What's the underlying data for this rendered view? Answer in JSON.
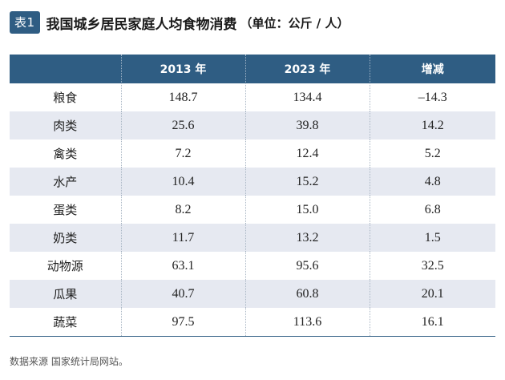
{
  "header": {
    "badge": "表1",
    "title": "我国城乡居民家庭人均食物消费",
    "unit": "（单位：公斤 / 人）"
  },
  "table": {
    "columns": [
      "",
      "2013 年",
      "2023 年",
      "增减"
    ],
    "rows": [
      [
        "粮食",
        "148.7",
        "134.4",
        "–14.3"
      ],
      [
        "肉类",
        "25.6",
        "39.8",
        "14.2"
      ],
      [
        "禽类",
        "7.2",
        "12.4",
        "5.2"
      ],
      [
        "水产",
        "10.4",
        "15.2",
        "4.8"
      ],
      [
        "蛋类",
        "8.2",
        "15.0",
        "6.8"
      ],
      [
        "奶类",
        "11.7",
        "13.2",
        "1.5"
      ],
      [
        "动物源",
        "63.1",
        "95.6",
        "32.5"
      ],
      [
        "瓜果",
        "40.7",
        "60.8",
        "20.1"
      ],
      [
        "蔬菜",
        "97.5",
        "113.6",
        "16.1"
      ]
    ]
  },
  "footer": {
    "source": "数据来源 国家统计局网站。"
  },
  "colors": {
    "header_bg": "#2f5d83",
    "stripe": "#e6e9f1"
  }
}
